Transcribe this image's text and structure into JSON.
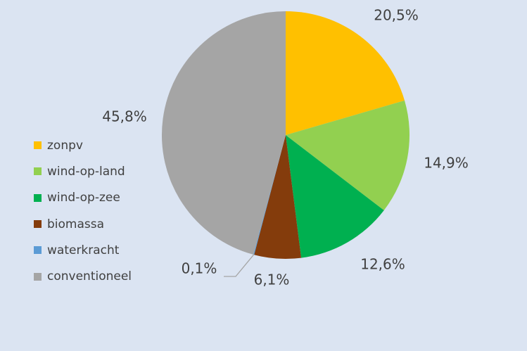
{
  "chart_data": {
    "type": "pie",
    "categories": [
      "zonpv",
      "wind-op-land",
      "wind-op-zee",
      "biomassa",
      "waterkracht",
      "conventioneel"
    ],
    "values": [
      20.5,
      14.9,
      12.6,
      6.1,
      0.1,
      45.8
    ],
    "data_labels": [
      "20,5%",
      "14,9%",
      "12,6%",
      "6,1%",
      "0,1%",
      "45,8%"
    ],
    "colors": [
      "#ffc000",
      "#92d050",
      "#00b050",
      "#843c0c",
      "#5b9bd5",
      "#a5a5a5"
    ],
    "start_angle": "12 o'clock",
    "direction": "clockwise",
    "legend_placement": "left"
  }
}
